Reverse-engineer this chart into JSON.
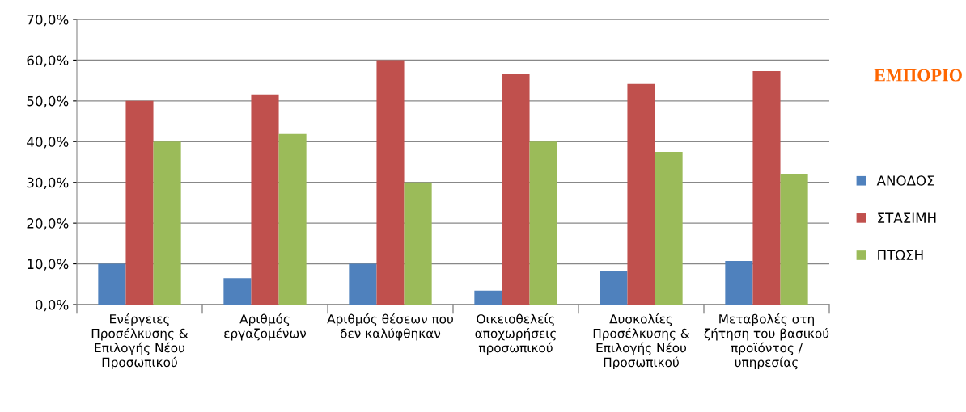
{
  "chart_data": {
    "type": "bar",
    "title": "ΕΜΠΟΡΙΟ",
    "categories": [
      "Ενέργειες\nΠροσέλκυσης &\nΕπιλογής Νέου\nΠροσωπικού",
      "Αριθμός\nεργαζομένων",
      "Αριθμός θέσεων που\nδεν καλύφθηκαν",
      "Οικειοθελείς\nαποχωρήσεις\nπροσωπικού",
      "Δυσκολίες\nΠροσέλκυσης &\nΕπιλογής Νέου\nΠροσωπικού",
      "Μεταβολές στη\nζήτηση του βασικού\nπροϊόντος /\nυπηρεσίας"
    ],
    "series": [
      {
        "name": "ΑΝΟΔΟΣ",
        "color": "#4f81bd",
        "values": [
          10.0,
          6.5,
          10.0,
          3.4,
          8.3,
          10.7
        ]
      },
      {
        "name": "ΣΤΑΣΙΜΗ",
        "color": "#c0504d",
        "values": [
          50.0,
          51.6,
          60.0,
          56.7,
          54.2,
          57.3
        ]
      },
      {
        "name": "ΠΤΩΣΗ",
        "color": "#9bbb59",
        "values": [
          40.0,
          41.9,
          30.0,
          40.0,
          37.5,
          32.1
        ]
      }
    ],
    "ylim": [
      0,
      70
    ],
    "yticks": [
      {
        "value": 0,
        "label": "0,0%"
      },
      {
        "value": 10,
        "label": "10,0%"
      },
      {
        "value": 20,
        "label": "20,0%"
      },
      {
        "value": 30,
        "label": "30,0%"
      },
      {
        "value": 40,
        "label": "40,0%"
      },
      {
        "value": 50,
        "label": "50,0%"
      },
      {
        "value": 60,
        "label": "60,0%"
      },
      {
        "value": 70,
        "label": "70,0%"
      }
    ],
    "grid": "y",
    "legend": "right"
  }
}
